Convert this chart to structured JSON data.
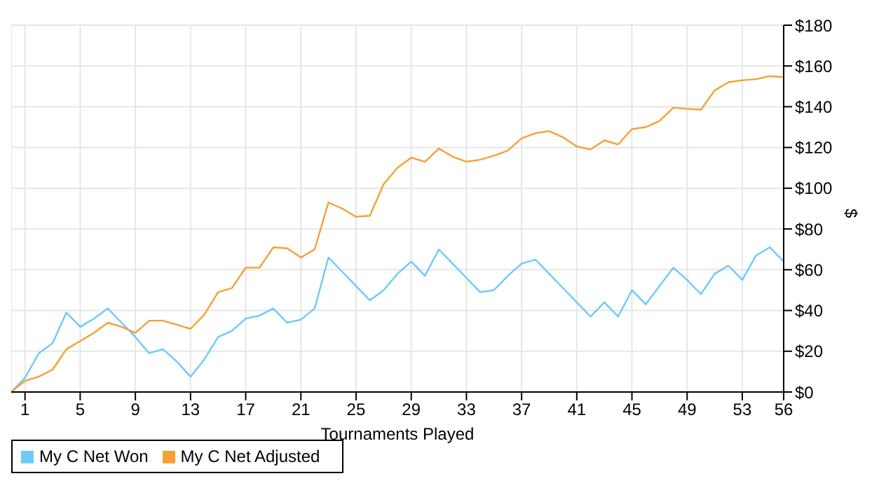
{
  "chart_data": {
    "type": "line",
    "xlabel": "Tournaments Played",
    "ylabel": "$",
    "x": [
      0,
      1,
      2,
      3,
      4,
      5,
      6,
      7,
      8,
      9,
      10,
      11,
      12,
      13,
      14,
      15,
      16,
      17,
      18,
      19,
      20,
      21,
      22,
      23,
      24,
      25,
      26,
      27,
      28,
      29,
      30,
      31,
      32,
      33,
      34,
      35,
      36,
      37,
      38,
      39,
      40,
      41,
      42,
      43,
      44,
      45,
      46,
      47,
      48,
      49,
      50,
      51,
      52,
      53,
      54,
      55,
      56
    ],
    "series": [
      {
        "name": "My C Net Won",
        "color": "#6ccbf7",
        "values": [
          0,
          7,
          19,
          24,
          39,
          32,
          36,
          41,
          34,
          27,
          19,
          21,
          15,
          7.5,
          16,
          27,
          30,
          36,
          37.5,
          41,
          34,
          35.5,
          41,
          66,
          59,
          52,
          45,
          50,
          58,
          64,
          57,
          70,
          63,
          56,
          49,
          50,
          57,
          63,
          65,
          58,
          51,
          44,
          37,
          44,
          37,
          50,
          43,
          52,
          61,
          55,
          48,
          58,
          62,
          55,
          67,
          71,
          64
        ]
      },
      {
        "name": "My C Net Adjusted",
        "color": "#f7a035",
        "values": [
          0,
          5.5,
          7.5,
          11,
          21,
          25,
          29,
          34,
          32,
          29,
          35,
          35,
          33,
          31,
          38,
          49,
          51,
          61,
          61,
          71,
          70.5,
          66,
          70,
          93,
          90,
          86,
          86.5,
          102,
          110,
          115,
          113,
          119.5,
          115.5,
          113,
          114,
          116,
          118.5,
          124.5,
          127,
          128,
          125,
          120.5,
          119,
          123.5,
          121.5,
          129,
          130,
          133,
          139.5,
          139,
          138.5,
          148,
          152,
          153,
          153.5,
          155,
          154.5
        ]
      }
    ],
    "xlim": [
      0,
      56
    ],
    "xticks": [
      1,
      5,
      9,
      13,
      17,
      21,
      25,
      29,
      33,
      37,
      41,
      45,
      49,
      53,
      56
    ],
    "ylim": [
      0,
      180
    ],
    "yticks": [
      {
        "value": 0,
        "label": "$0"
      },
      {
        "value": 20,
        "label": "$20"
      },
      {
        "value": 40,
        "label": "$40"
      },
      {
        "value": 60,
        "label": "$60"
      },
      {
        "value": 80,
        "label": "$80"
      },
      {
        "value": 100,
        "label": "$100"
      },
      {
        "value": 120,
        "label": "$120"
      },
      {
        "value": 140,
        "label": "$140"
      },
      {
        "value": 160,
        "label": "$160"
      },
      {
        "value": 180,
        "label": "$180"
      }
    ],
    "grid": true,
    "legend": "bottom left",
    "marker": "none",
    "line_style": "solid"
  }
}
